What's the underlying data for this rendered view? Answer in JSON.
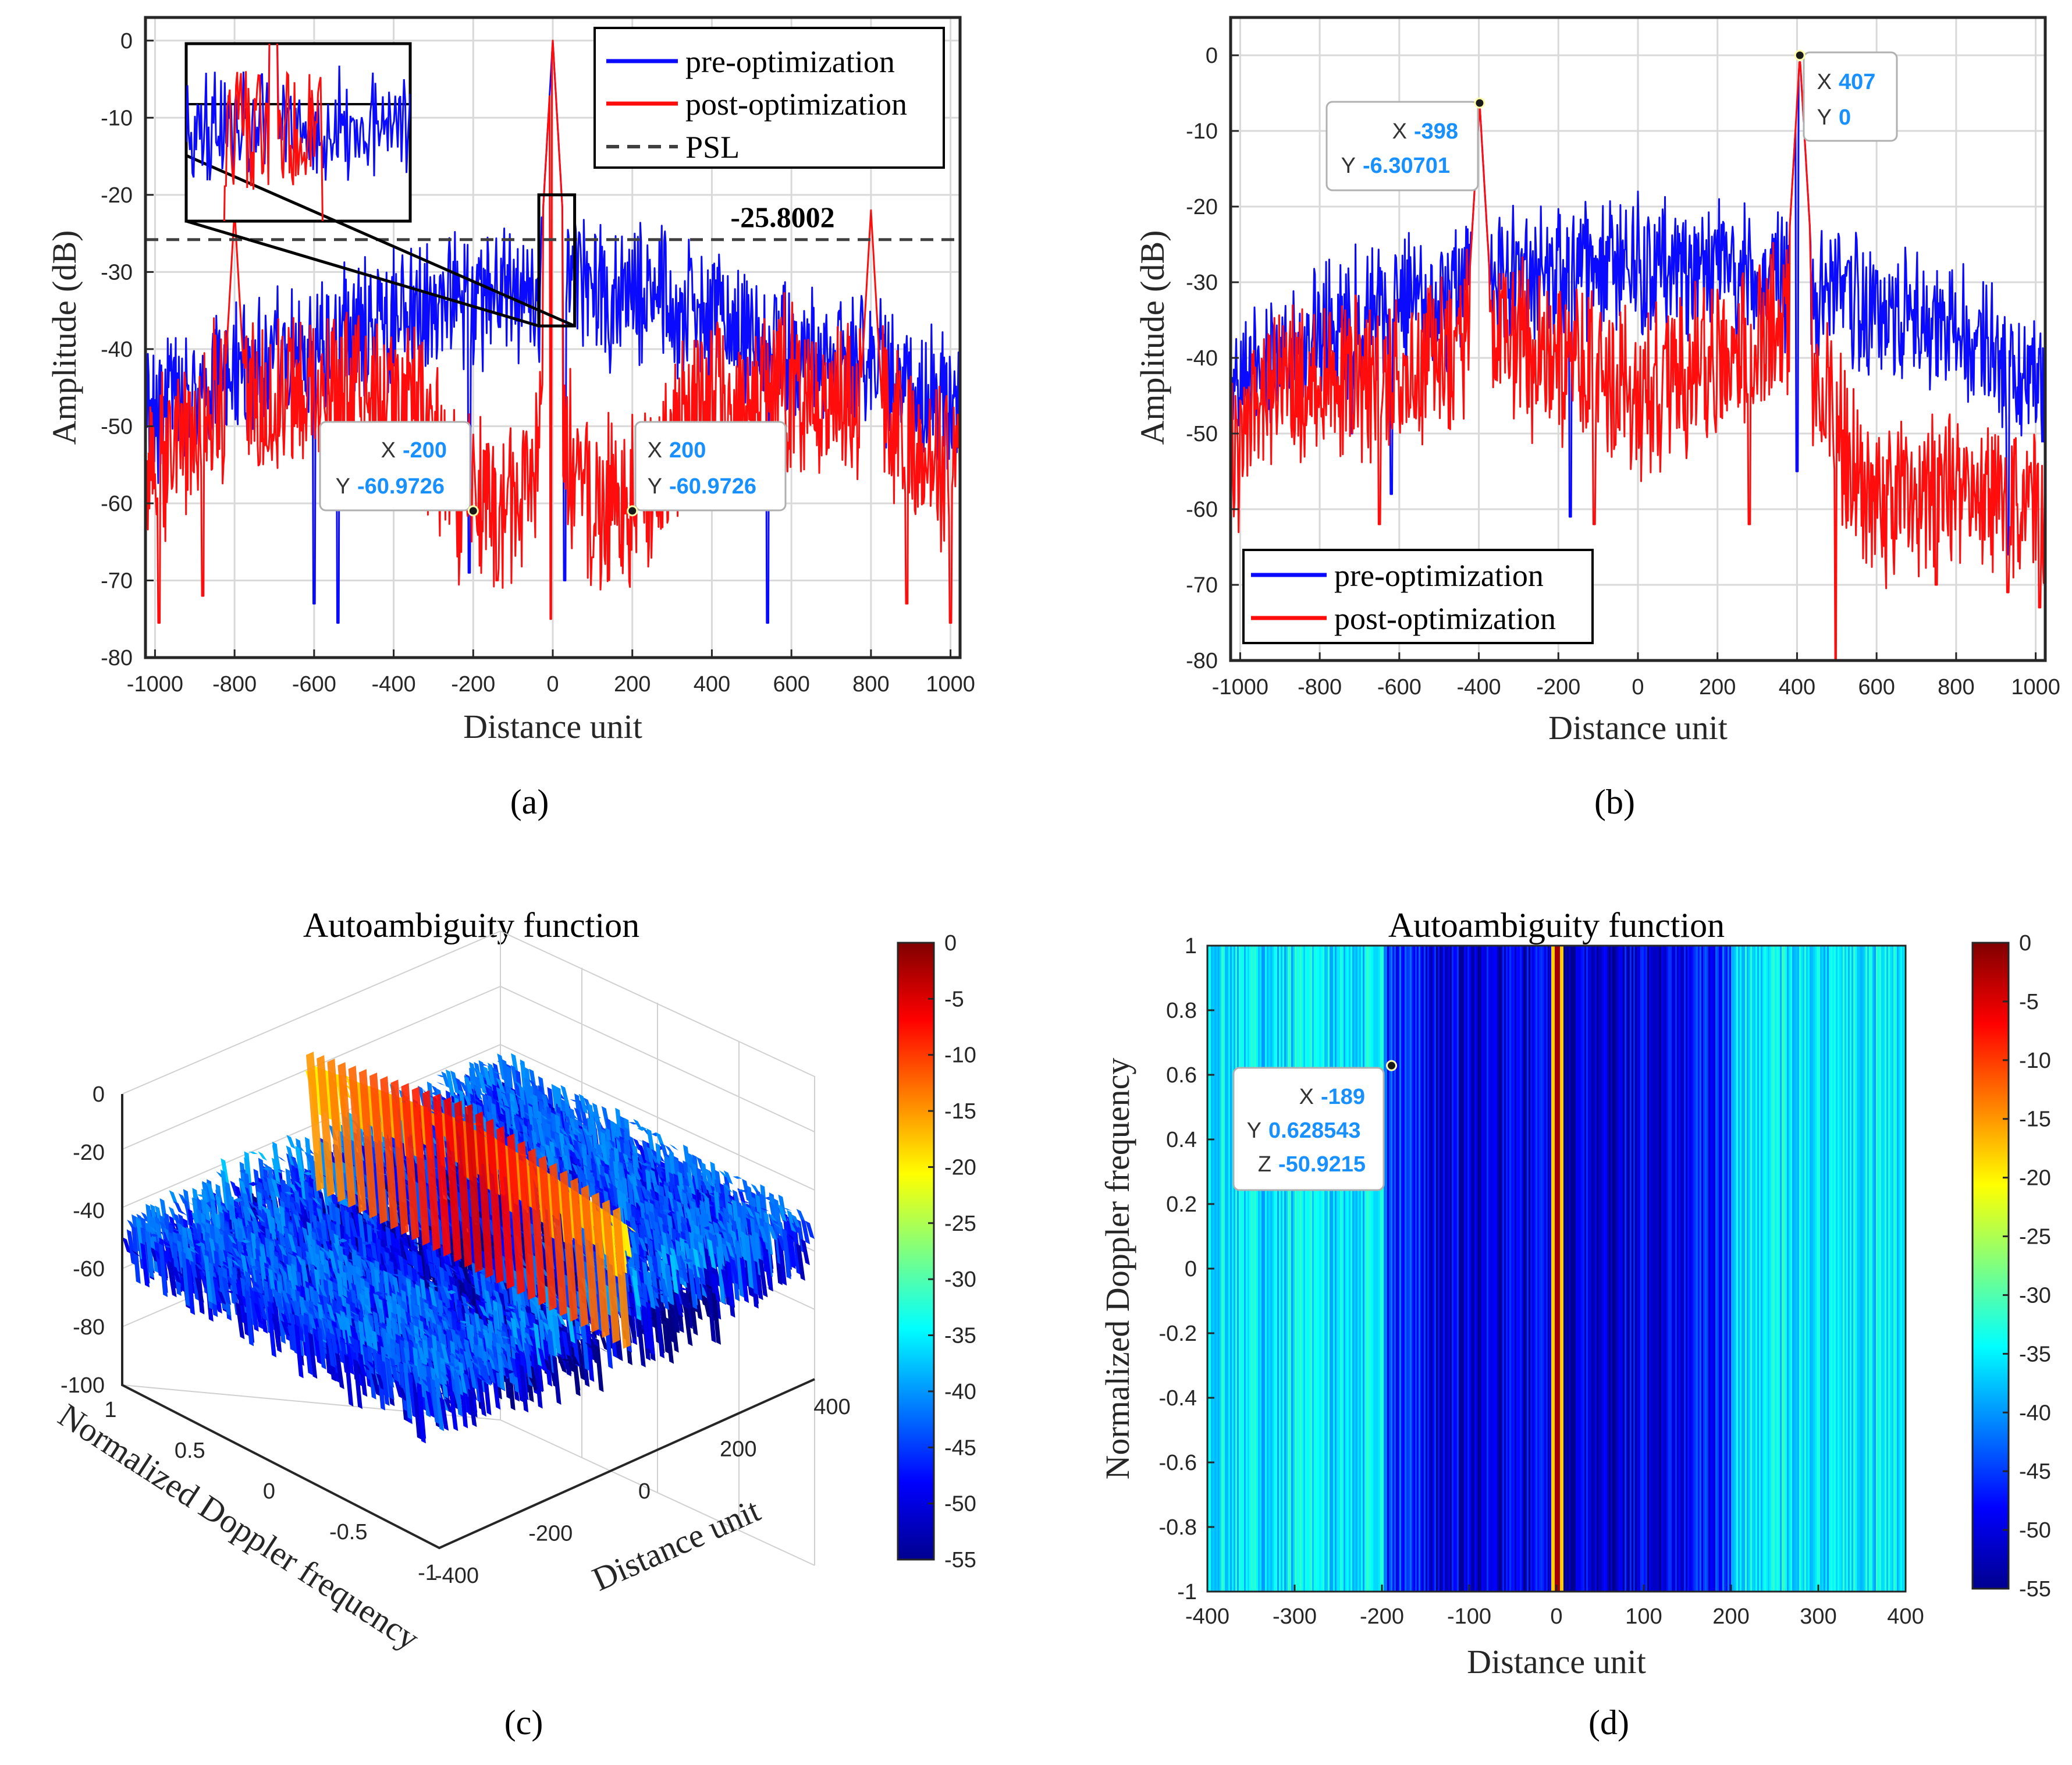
{
  "figure": {
    "captions": {
      "a": "(a)",
      "b": "(b)",
      "c": "(c)",
      "d": "(d)"
    }
  },
  "colors": {
    "pre": "#0a0aff",
    "post": "#ff0d0d",
    "psl": "#404040",
    "datatip_value": "#1890ff",
    "grid": "#d9d9d9"
  },
  "chart_data": [
    {
      "id": "a",
      "type": "line",
      "xlabel": "Distance unit",
      "ylabel": "Amplitude (dB)",
      "xlim": [
        -1024,
        1024
      ],
      "ylim": [
        -80,
        3
      ],
      "xticks": [
        -1000,
        -800,
        -600,
        -400,
        -200,
        0,
        200,
        400,
        600,
        800,
        1000
      ],
      "yticks": [
        0,
        -10,
        -20,
        -30,
        -40,
        -50,
        -60,
        -70,
        -80
      ],
      "grid": true,
      "legend_position": "top-right",
      "series": [
        {
          "name": "pre-optimization",
          "color": "#0a0aff",
          "envelope": [
            [
              -1024,
              -43
            ],
            [
              -800,
              -37
            ],
            [
              -600,
              -34
            ],
            [
              -400,
              -30
            ],
            [
              -200,
              -28
            ],
            [
              0,
              -26
            ],
            [
              200,
              -28
            ],
            [
              400,
              -30
            ],
            [
              600,
              -34
            ],
            [
              800,
              -37
            ],
            [
              1024,
              -43
            ]
          ],
          "peaks": [
            [
              0,
              0
            ]
          ],
          "spread": 10,
          "dips": [
            [
              -540,
              -75.5
            ],
            [
              -210,
              -69
            ],
            [
              540,
              -75.5
            ],
            [
              30,
              -70
            ],
            [
              -600,
              -73
            ]
          ]
        },
        {
          "name": "post-optimization",
          "color": "#ff0d0d",
          "envelope": [
            [
              -1024,
              -50
            ],
            [
              -900,
              -44
            ],
            [
              -820,
              -40
            ],
            [
              -700,
              -40
            ],
            [
              -600,
              -38
            ],
            [
              -450,
              -40
            ],
            [
              -330,
              -42
            ],
            [
              -250,
              -52
            ],
            [
              -100,
              -54
            ],
            [
              0,
              -40
            ],
            [
              100,
              -54
            ],
            [
              250,
              -52
            ],
            [
              330,
              -42
            ],
            [
              450,
              -40
            ],
            [
              600,
              -38
            ],
            [
              700,
              -40
            ],
            [
              820,
              -40
            ],
            [
              900,
              -44
            ],
            [
              1024,
              -50
            ]
          ],
          "peaks": [
            [
              0,
              0
            ],
            [
              -800,
              -22
            ],
            [
              800,
              -22
            ]
          ],
          "spread": 12,
          "dips": [
            [
              -990,
              -75.5
            ],
            [
              1000,
              -75.5
            ],
            [
              -880,
              -72
            ],
            [
              890,
              -73
            ],
            [
              -5,
              -75
            ],
            [
              100,
              -67
            ],
            [
              -140,
              -70
            ]
          ]
        }
      ],
      "reference_lines": [
        {
          "name": "PSL",
          "y": -25.8002,
          "label": "-25.8002",
          "style": "dashed"
        }
      ],
      "inset": {
        "x_range": [
          -35,
          55
        ],
        "y_range": [
          -37,
          -20
        ]
      },
      "datatips": [
        {
          "x": -200,
          "y": -60.9726,
          "x_label": "X",
          "y_label": "Y",
          "x_text": "-200",
          "y_text": "-60.9726"
        },
        {
          "x": 200,
          "y": -60.9726,
          "x_label": "X",
          "y_label": "Y",
          "x_text": "200",
          "y_text": "-60.9726"
        }
      ]
    },
    {
      "id": "b",
      "type": "line",
      "xlabel": "Distance unit",
      "ylabel": "Amplitude (dB)",
      "xlim": [
        -1024,
        1024
      ],
      "ylim": [
        -80,
        5
      ],
      "xticks": [
        -1000,
        -800,
        -600,
        -400,
        -200,
        0,
        200,
        400,
        600,
        800,
        1000
      ],
      "yticks": [
        0,
        -10,
        -20,
        -30,
        -40,
        -50,
        -60,
        -70,
        -80
      ],
      "grid": true,
      "legend_position": "bottom-left",
      "series": [
        {
          "name": "pre-optimization",
          "color": "#0a0aff",
          "envelope": [
            [
              -1024,
              -38
            ],
            [
              -800,
              -31
            ],
            [
              -600,
              -28
            ],
            [
              -400,
              -25
            ],
            [
              -200,
              -23
            ],
            [
              0,
              -22
            ],
            [
              200,
              -23
            ],
            [
              407,
              -25
            ],
            [
              600,
              -28
            ],
            [
              800,
              -31
            ],
            [
              1024,
              -38
            ]
          ],
          "peaks": [
            [
              -398,
              -6.30701
            ],
            [
              407,
              0
            ]
          ],
          "spread": 10,
          "dips": [
            [
              -620,
              -58
            ],
            [
              -170,
              -61
            ],
            [
              930,
              -66
            ],
            [
              -720,
              -50
            ],
            [
              400,
              -55
            ]
          ]
        },
        {
          "name": "post-optimization",
          "color": "#ff0d0d",
          "envelope": [
            [
              -1024,
              -48
            ],
            [
              -900,
              -36
            ],
            [
              -600,
              -36
            ],
            [
              -398,
              -30
            ],
            [
              -200,
              -34
            ],
            [
              0,
              -38
            ],
            [
              200,
              -34
            ],
            [
              407,
              -28
            ],
            [
              500,
              -44
            ],
            [
              600,
              -52
            ],
            [
              800,
              -52
            ],
            [
              1024,
              -54
            ]
          ],
          "peaks": [
            [
              -398,
              -6.30701
            ],
            [
              407,
              0
            ]
          ],
          "spread": 12,
          "dips": [
            [
              497,
              -80
            ],
            [
              930,
              -71
            ],
            [
              1010,
              -73
            ],
            [
              -110,
              -62
            ],
            [
              -650,
              -62
            ],
            [
              280,
              -62
            ],
            [
              750,
              -70
            ]
          ]
        }
      ],
      "datatips": [
        {
          "x": -398,
          "y": -6.30701,
          "x_label": "X",
          "y_label": "Y",
          "x_text": "-398",
          "y_text": "-6.30701"
        },
        {
          "x": 407,
          "y": 0,
          "x_label": "X",
          "y_label": "Y",
          "x_text": "407",
          "y_text": "0"
        }
      ]
    },
    {
      "id": "c",
      "type": "surface",
      "title": "Autoambiguity function",
      "xlabel": "Distance unit",
      "ylabel": "Normalized Doppler frequency",
      "xlim": [
        -400,
        400
      ],
      "ylim": [
        -1,
        1
      ],
      "zlim": [
        -100,
        0
      ],
      "xticks": [
        -400,
        -200,
        0,
        200,
        400
      ],
      "yticks": [
        -1,
        -0.5,
        0,
        0.5,
        1
      ],
      "zticks": [
        0,
        -20,
        -40,
        -60,
        -80,
        -100
      ],
      "colorbar": {
        "range": [
          -55,
          0
        ],
        "ticks": [
          0,
          -5,
          -10,
          -15,
          -20,
          -25,
          -30,
          -35,
          -40,
          -45,
          -50,
          -55
        ]
      }
    },
    {
      "id": "d",
      "type": "heatmap",
      "title": "Autoambiguity function",
      "xlabel": "Distance unit",
      "ylabel": "Normalized Doppler frequency",
      "xlim": [
        -400,
        400
      ],
      "ylim": [
        -1,
        1
      ],
      "xticks": [
        -400,
        -300,
        -200,
        -100,
        0,
        100,
        200,
        300,
        400
      ],
      "yticks": [
        1,
        0.8,
        0.6,
        0.4,
        0.2,
        0,
        -0.2,
        -0.4,
        -0.6,
        -0.8,
        -1
      ],
      "colorbar": {
        "range": [
          -55,
          0
        ],
        "ticks": [
          0,
          -5,
          -10,
          -15,
          -20,
          -25,
          -30,
          -35,
          -40,
          -45,
          -50,
          -55
        ]
      },
      "datatips": [
        {
          "x": -189,
          "y": 0.628543,
          "z": -50.9215,
          "x_label": "X",
          "y_label": "Y",
          "z_label": "Z",
          "x_text": "-189",
          "y_text": "0.628543",
          "z_text": "-50.9215"
        }
      ]
    }
  ]
}
